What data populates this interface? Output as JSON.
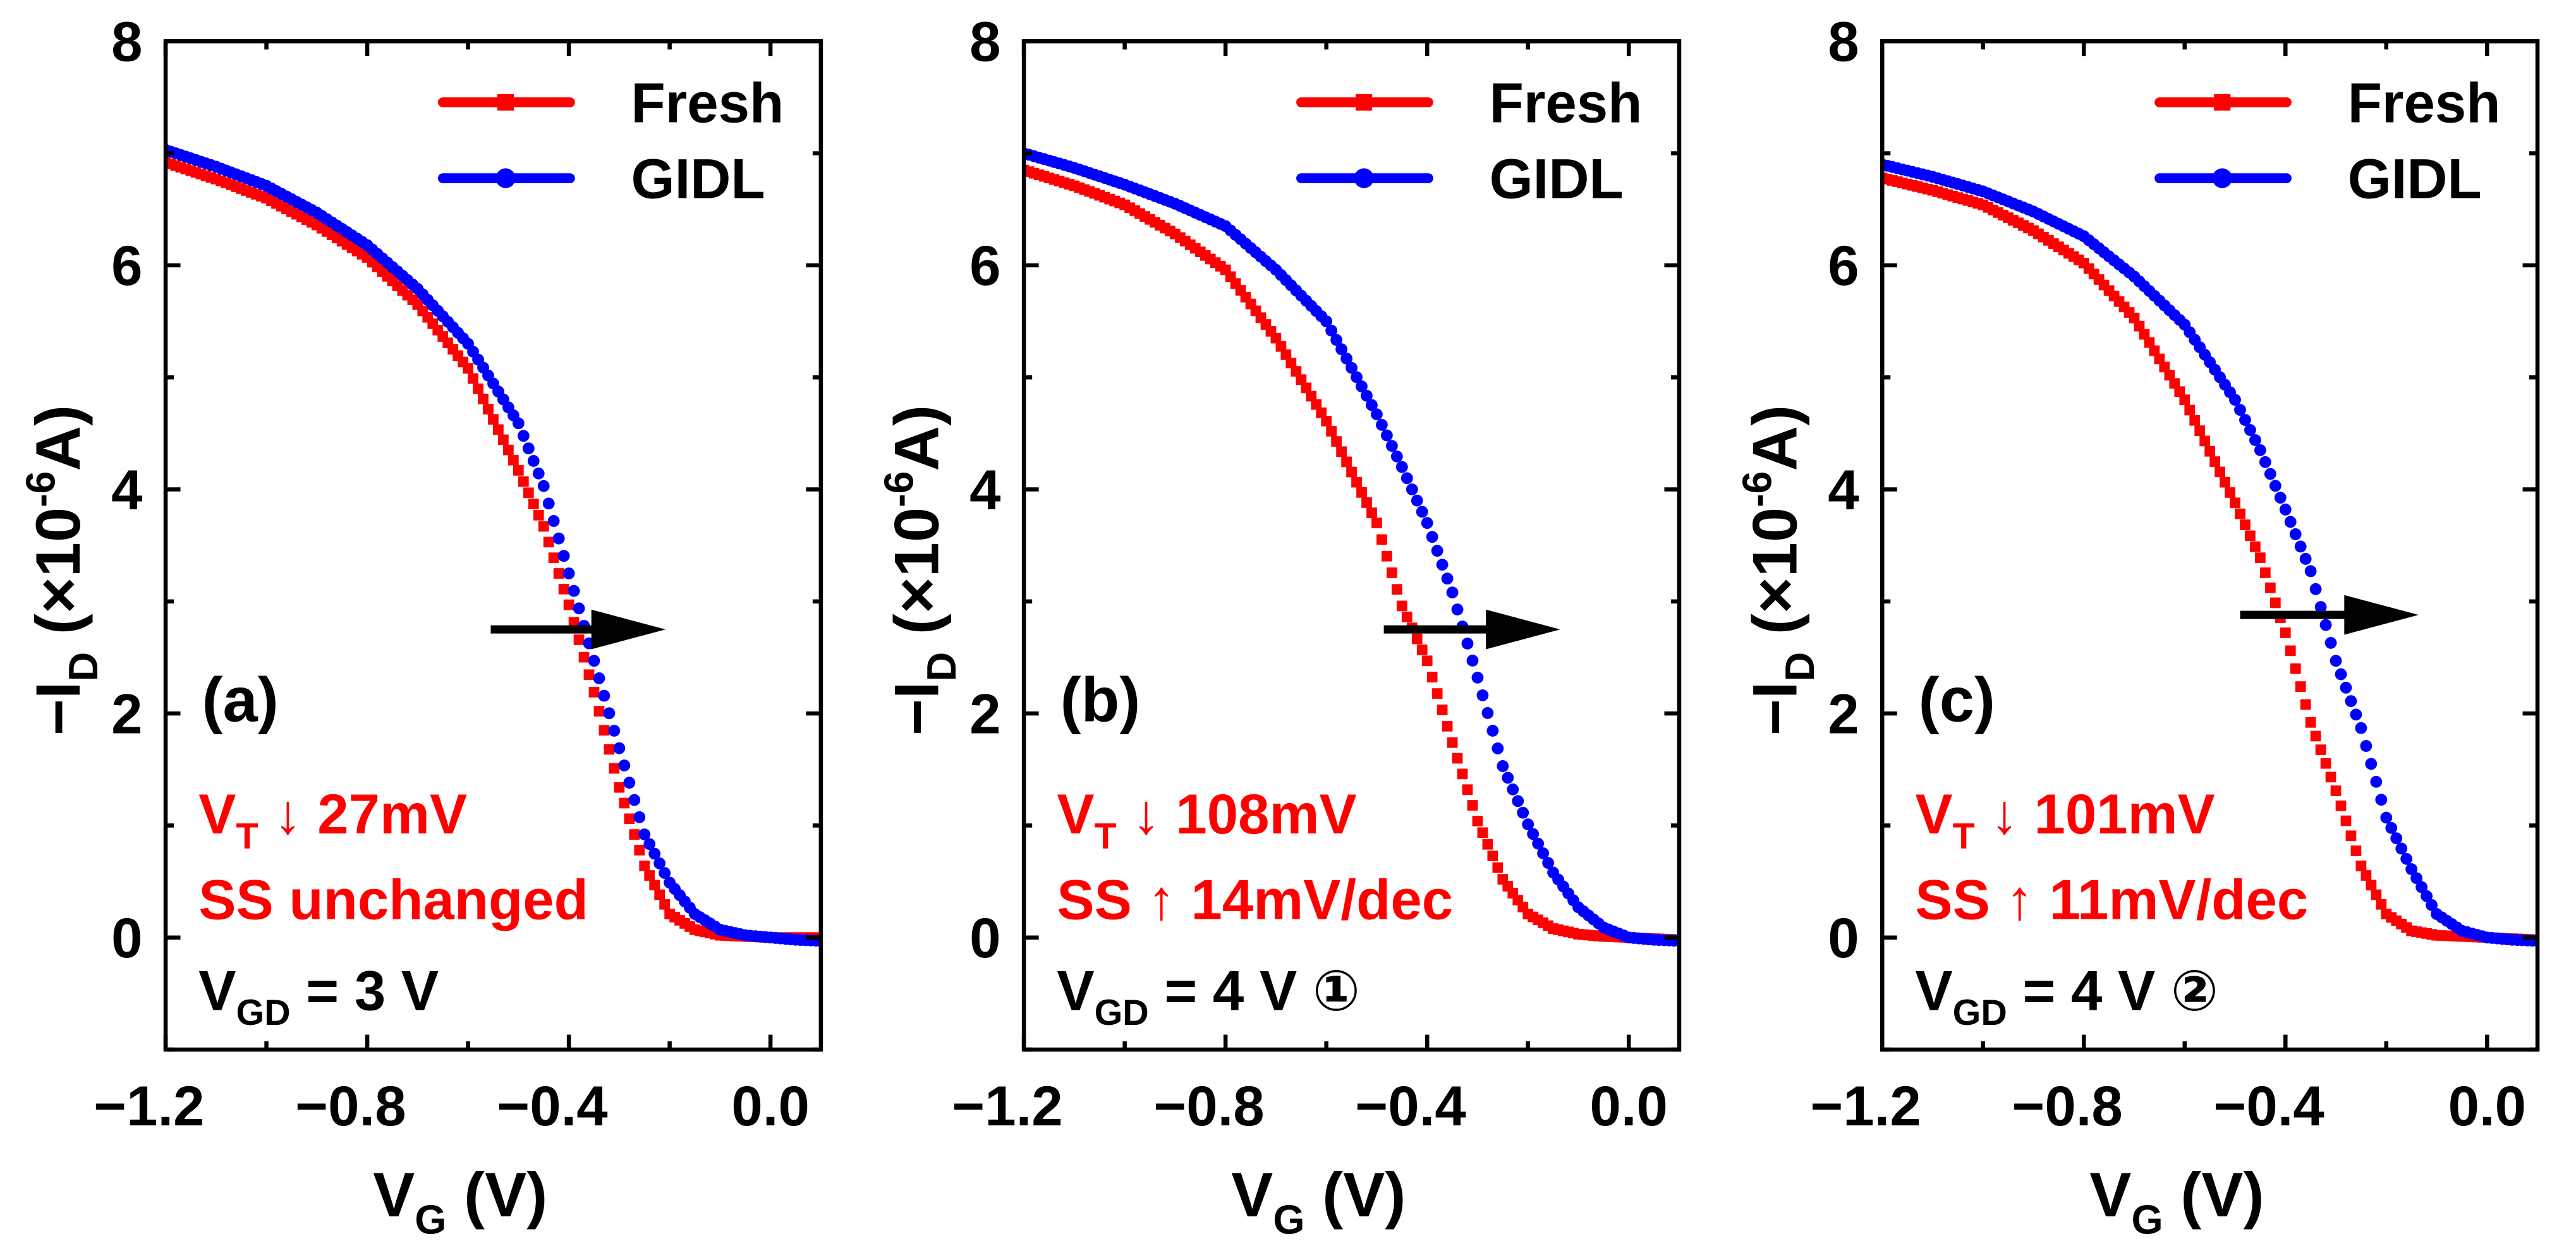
{
  "colors": {
    "fresh": "#ff0000",
    "gidl": "#0000ff",
    "axis": "#000000",
    "annotation_red": "#ff0000"
  },
  "shared": {
    "xlabel": [
      {
        "t": "V"
      },
      {
        "t": "G",
        "s": "sub"
      },
      {
        "t": " (V)"
      }
    ],
    "ylabel": [
      {
        "t": "−I"
      },
      {
        "t": "D",
        "s": "sub"
      },
      {
        "t": " (×10"
      },
      {
        "t": "-6",
        "s": "sup"
      },
      {
        "t": "A)"
      }
    ],
    "xtick_labels": [
      "−1.2",
      "−0.8",
      "−0.4",
      "0.0"
    ],
    "xtick_values": [
      -1.2,
      -0.8,
      -0.4,
      0.0
    ],
    "ytick_labels": [
      "0",
      "2",
      "4",
      "6",
      "8"
    ],
    "ytick_values": [
      0,
      2,
      4,
      6,
      8
    ],
    "legend": [
      {
        "name": "Fresh",
        "marker": "square",
        "color": "#ff0000"
      },
      {
        "name": "GIDL",
        "marker": "circle",
        "color": "#0000ff"
      }
    ],
    "legend_position": "top-right"
  },
  "chart_data": [
    {
      "type": "scatter",
      "panel_label": "(a)",
      "xlim": [
        -1.2,
        0.1
      ],
      "ylim": [
        -1,
        8
      ],
      "x": [
        -1.2,
        -1.1,
        -1.0,
        -0.9,
        -0.8,
        -0.7,
        -0.6,
        -0.5,
        -0.45,
        -0.4,
        -0.35,
        -0.3,
        -0.25,
        -0.2,
        -0.15,
        -0.1,
        -0.05,
        0,
        0.05,
        0.1
      ],
      "series": [
        {
          "name": "Fresh",
          "values": [
            6.92,
            6.77,
            6.6,
            6.36,
            6.07,
            5.65,
            5.08,
            4.17,
            3.67,
            2.97,
            2.19,
            1.34,
            0.64,
            0.21,
            0.07,
            0.02,
            0.01,
            0,
            0,
            0
          ]
        },
        {
          "name": "GIDL",
          "values": [
            7.03,
            6.88,
            6.71,
            6.47,
            6.18,
            5.79,
            5.3,
            4.59,
            4.03,
            3.25,
            2.47,
            1.69,
            0.92,
            0.49,
            0.21,
            0.07,
            0.02,
            0,
            -0.02,
            -0.03
          ]
        }
      ],
      "annotations": {
        "vt": {
          "main": "V",
          "sub": "T",
          "rest": " ↓ 27mV"
        },
        "ss": "SS unchanged",
        "vgd": {
          "main": "V",
          "sub": "GD",
          "rest": " = 3 V"
        }
      },
      "arrow": {
        "from": [
          -0.555,
          2.75
        ],
        "to": [
          -0.208,
          2.75
        ]
      }
    },
    {
      "type": "scatter",
      "panel_label": "(b)",
      "xlim": [
        -1.2,
        0.1
      ],
      "ylim": [
        -1,
        8
      ],
      "x": [
        -1.2,
        -1.1,
        -1.0,
        -0.9,
        -0.8,
        -0.7,
        -0.6,
        -0.5,
        -0.45,
        -0.4,
        -0.35,
        -0.3,
        -0.25,
        -0.2,
        -0.15,
        -0.1,
        -0.05,
        0,
        0.05,
        0.1
      ],
      "series": [
        {
          "name": "Fresh",
          "values": [
            6.85,
            6.71,
            6.54,
            6.28,
            5.96,
            5.35,
            4.61,
            3.7,
            2.96,
            2.47,
            1.74,
            1.04,
            0.52,
            0.21,
            0.08,
            0.03,
            0.01,
            0,
            -0.01,
            -0.02
          ]
        },
        {
          "name": "GIDL",
          "values": [
            7.0,
            6.87,
            6.72,
            6.55,
            6.35,
            5.96,
            5.5,
            4.67,
            4.2,
            3.7,
            3.08,
            2.32,
            1.53,
            1.01,
            0.58,
            0.27,
            0.09,
            0,
            -0.02,
            -0.03
          ]
        }
      ],
      "annotations": {
        "vt": {
          "main": "V",
          "sub": "T",
          "rest": " ↓ 108mV"
        },
        "ss": "SS ↑ 14mV/dec",
        "vgd": {
          "main": "V",
          "sub": "GD",
          "rest": " = 4 V ①"
        }
      },
      "arrow": {
        "from": [
          -0.486,
          2.75
        ],
        "to": [
          -0.136,
          2.75
        ]
      }
    },
    {
      "type": "scatter",
      "panel_label": "(c)",
      "xlim": [
        -1.2,
        0.1
      ],
      "ylim": [
        -1,
        8
      ],
      "x": [
        -1.2,
        -1.1,
        -1.0,
        -0.9,
        -0.8,
        -0.7,
        -0.6,
        -0.5,
        -0.45,
        -0.4,
        -0.35,
        -0.3,
        -0.25,
        -0.2,
        -0.15,
        -0.1,
        -0.05,
        0,
        0.05,
        0.1
      ],
      "series": [
        {
          "name": "Fresh",
          "values": [
            6.78,
            6.67,
            6.54,
            6.31,
            6.02,
            5.53,
            4.8,
            3.88,
            3.39,
            2.72,
            1.92,
            1.31,
            0.64,
            0.21,
            0.06,
            0.02,
            0.01,
            0,
            -0.01,
            -0.02
          ]
        },
        {
          "name": "GIDL",
          "values": [
            6.9,
            6.79,
            6.66,
            6.48,
            6.26,
            5.9,
            5.47,
            4.8,
            4.35,
            3.82,
            3.27,
            2.47,
            1.87,
            1.07,
            0.61,
            0.21,
            0.06,
            0,
            -0.02,
            -0.03
          ]
        }
      ],
      "annotations": {
        "vt": {
          "main": "V",
          "sub": "T",
          "rest": " ↓ 101mV"
        },
        "ss": "SS ↑ 11mV/dec",
        "vgd": {
          "main": "V",
          "sub": "GD",
          "rest": " = 4 V ②"
        }
      },
      "arrow": {
        "from": [
          -0.49,
          2.88
        ],
        "to": [
          -0.136,
          2.88
        ]
      }
    }
  ]
}
